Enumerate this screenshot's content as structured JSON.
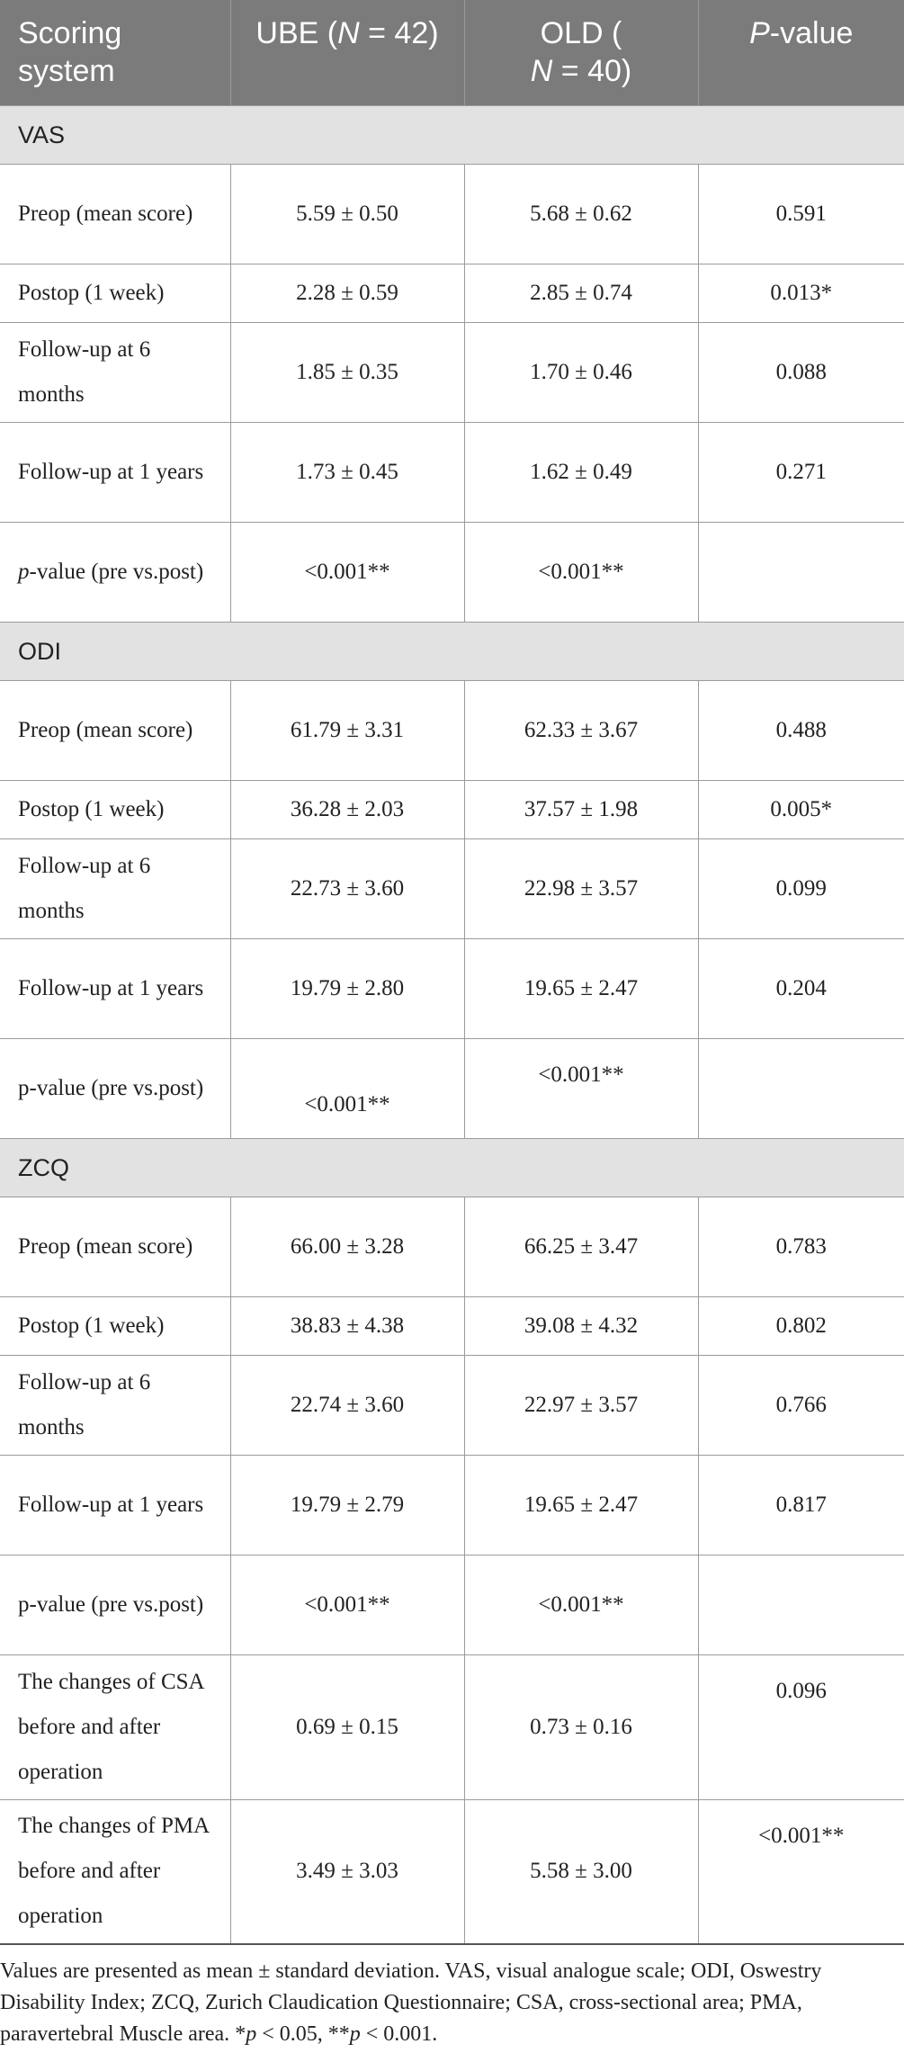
{
  "header": {
    "col0": "Scoring system",
    "col1_pre": "UBE (",
    "col1_n": "N",
    "col1_post": " = 42)",
    "col2_pre": "OLD (",
    "col2_n": "N",
    "col2_post": " = 40)",
    "col3_p": "P",
    "col3_post": "-value"
  },
  "sections": {
    "vas": {
      "title": "VAS",
      "rows": [
        {
          "label": "Preop (mean score)",
          "ube": "5.59 ± 0.50",
          "old": "5.68 ± 0.62",
          "p": "0.591"
        },
        {
          "label": "Postop (1 week)",
          "ube": "2.28 ± 0.59",
          "old": "2.85 ± 0.74",
          "p": "0.013*"
        },
        {
          "label": "Follow-up at 6 months",
          "ube": "1.85 ± 0.35",
          "old": "1.70 ± 0.46",
          "p": "0.088"
        },
        {
          "label": "Follow-up at 1 years",
          "ube": "1.73 ± 0.45",
          "old": "1.62 ± 0.49",
          "p": "0.271"
        }
      ],
      "pre_vs_post": {
        "label_p": "p",
        "label_rest": "-value (pre vs.post)",
        "ube": "<0.001**",
        "old": "<0.001**",
        "p": ""
      }
    },
    "odi": {
      "title": "ODI",
      "rows": [
        {
          "label": "Preop (mean score)",
          "ube": "61.79 ± 3.31",
          "old": "62.33 ± 3.67",
          "p": "0.488"
        },
        {
          "label": "Postop (1 week)",
          "ube": "36.28 ± 2.03",
          "old": "37.57 ± 1.98",
          "p": "0.005*"
        },
        {
          "label": "Follow-up at 6 months",
          "ube": "22.73 ± 3.60",
          "old": "22.98 ± 3.57",
          "p": "0.099"
        },
        {
          "label": "Follow-up at 1 years",
          "ube": "19.79 ± 2.80",
          "old": "19.65 ± 2.47",
          "p": "0.204"
        }
      ],
      "pre_vs_post": {
        "label": "p-value (pre vs.post)",
        "ube": "<0.001**",
        "old": "<0.001**",
        "p": ""
      }
    },
    "zcq": {
      "title": "ZCQ",
      "rows": [
        {
          "label": "Preop (mean score)",
          "ube": "66.00 ± 3.28",
          "old": "66.25 ± 3.47",
          "p": "0.783"
        },
        {
          "label": "Postop (1 week)",
          "ube": "38.83 ± 4.38",
          "old": "39.08 ± 4.32",
          "p": "0.802"
        },
        {
          "label": "Follow-up at 6 months",
          "ube": "22.74 ± 3.60",
          "old": "22.97 ± 3.57",
          "p": "0.766"
        },
        {
          "label": "Follow-up at 1 years",
          "ube": "19.79 ± 2.79",
          "old": "19.65 ± 2.47",
          "p": "0.817"
        }
      ],
      "pre_vs_post": {
        "label": "p-value (pre vs.post)",
        "ube": "<0.001**",
        "old": "<0.001**",
        "p": ""
      }
    }
  },
  "extra_rows": [
    {
      "label": "The changes of CSA before and after operation",
      "ube": "0.69 ± 0.15",
      "old": "0.73 ± 0.16",
      "p": "0.096"
    },
    {
      "label": "The changes of PMA before and after operation",
      "ube": "3.49 ± 3.03",
      "old": "5.58 ± 3.00",
      "p": "<0.001**"
    }
  ],
  "footnote": {
    "text": "Values are presented as mean ± standard deviation. VAS, visual analogue scale; ODI, Oswestry Disability Index; ZCQ, Zurich Claudication Questionnaire; CSA, cross-sectional area; PMA, paravertebral Muscle area. ",
    "star1": "*",
    "p1": "p",
    "t1": " < 0.05, ",
    "star2": "**",
    "p2": "p",
    "t2": " < 0.001."
  }
}
